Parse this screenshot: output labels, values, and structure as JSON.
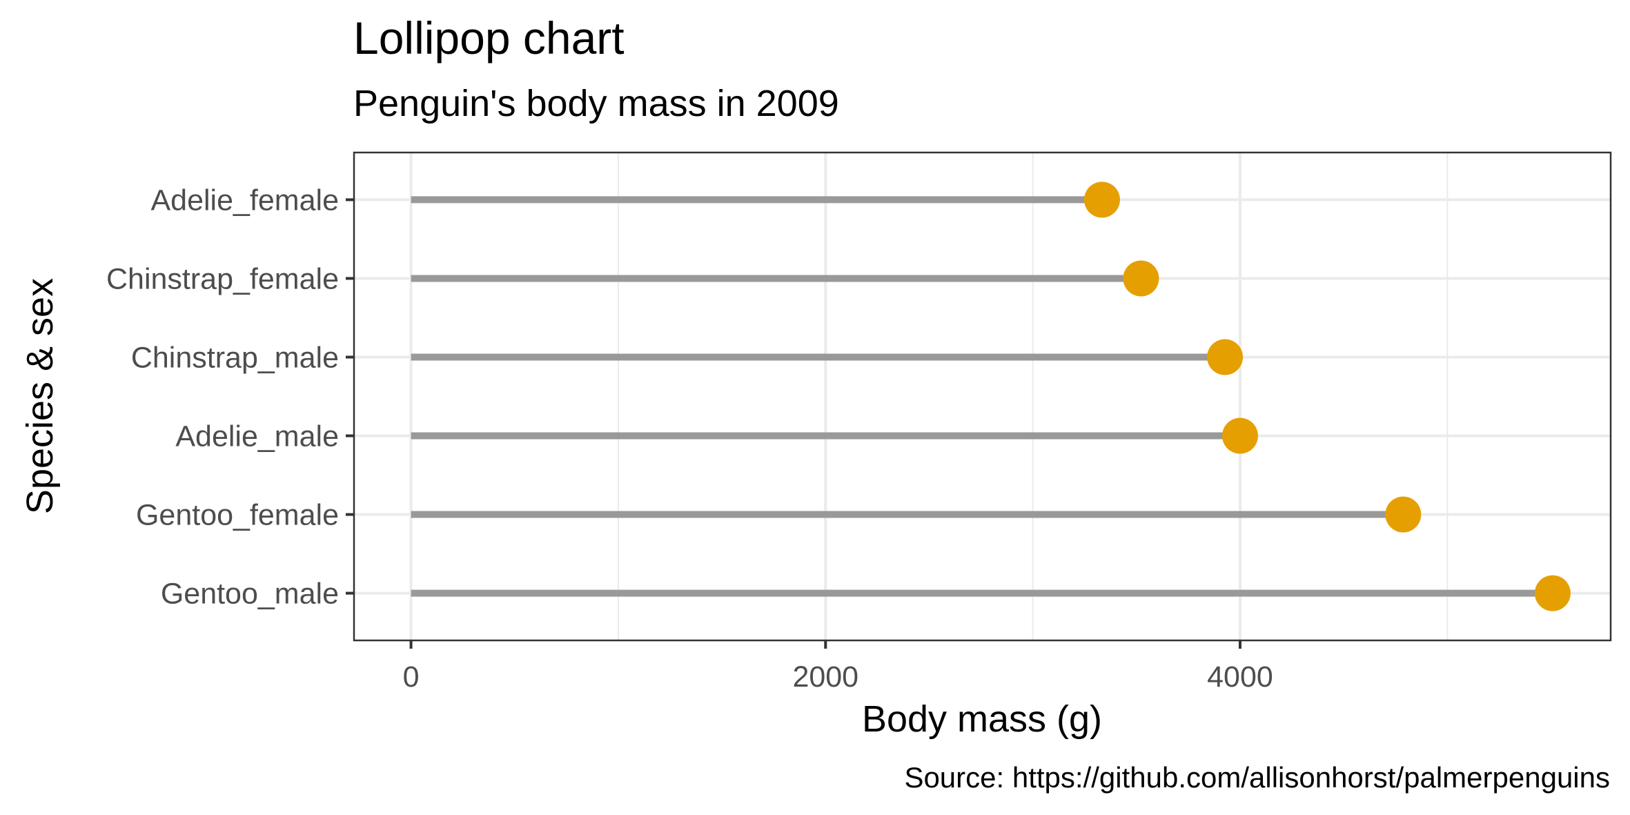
{
  "chart_data": {
    "type": "lollipop",
    "title": "Lollipop chart",
    "subtitle": "Penguin's body mass in 2009",
    "xlabel": "Body mass (g)",
    "ylabel": "Species & sex",
    "caption": "Source: https://github.com/allisonhorst/palmerpenguins",
    "xlim": [
      -275,
      5788
    ],
    "x_ticks": [
      0,
      2000,
      4000
    ],
    "x_minor_grid": [
      1000,
      3000,
      5000
    ],
    "grid": true,
    "categories": [
      "Adelie_female",
      "Chinstrap_female",
      "Chinstrap_male",
      "Adelie_male",
      "Gentoo_female",
      "Gentoo_male"
    ],
    "values": [
      3334,
      3522,
      3927,
      4000,
      4787,
      5508
    ],
    "colors": {
      "point": "#E69F00",
      "stem": "#999999",
      "grid_major": "#EBEBEB",
      "grid_minor": "#EBEBEB",
      "panel_border": "#333333",
      "tick_label": "#4D4D4D",
      "text": "#000000"
    }
  }
}
